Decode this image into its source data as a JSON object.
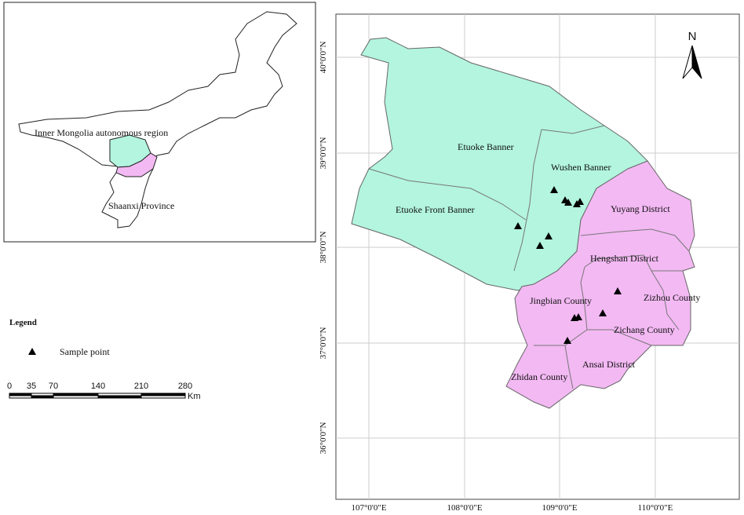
{
  "inset": {
    "labels": [
      "Inner Mongolia autonomous region",
      "Shaanxi Province"
    ]
  },
  "legend": {
    "title": "Legend",
    "items": [
      "Sample point"
    ]
  },
  "scale_bar": {
    "ticks": [
      "0",
      "35",
      "70",
      "140",
      "210",
      "280"
    ],
    "unit": "Km"
  },
  "north_arrow": "N",
  "map": {
    "regions": [
      "Etuoke Banner",
      "Wushen Banner",
      "Etuoke Front Banner",
      "Yuyang District",
      "Hengshan District",
      "Jingbian County",
      "Zizhou County",
      "Zichang County",
      "Ansai District",
      "Zhidan County"
    ],
    "x_labels": [
      "107°0'0\"E",
      "108°0'0\"E",
      "109°0'0\"E",
      "110°0'0\"E"
    ],
    "y_labels": [
      "40°0'0\"N",
      "39°0'0\"N",
      "38°0'0\"N",
      "37°0'0\"N",
      "36°0'0\"N"
    ]
  }
}
